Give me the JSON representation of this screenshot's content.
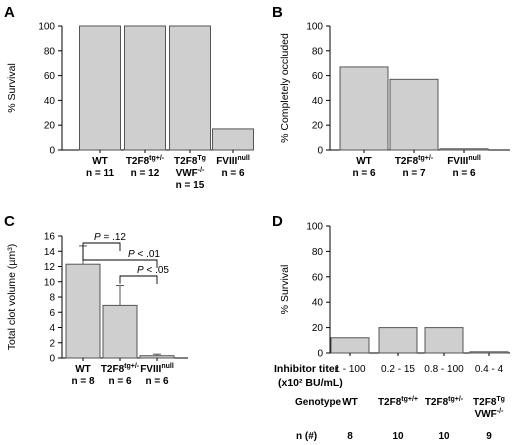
{
  "chart_data": [
    {
      "panel": "A",
      "type": "bar",
      "ylabel": "% Survival",
      "ylim": [
        0,
        100
      ],
      "yticks": [
        "0",
        "20",
        "40",
        "60",
        "80",
        "100"
      ],
      "categories": [
        {
          "lines": [
            [
              "WT",
              ""
            ],
            [
              "n = 11",
              ""
            ]
          ]
        },
        {
          "lines": [
            [
              "T2F8",
              "tg+/-"
            ],
            [
              "n = 12",
              ""
            ]
          ]
        },
        {
          "lines": [
            [
              "T2F8",
              "Tg"
            ],
            [
              "VWF",
              "-/-"
            ],
            [
              "n = 15",
              ""
            ]
          ]
        },
        {
          "lines": [
            [
              "FVIII",
              "null"
            ],
            [
              "n = 6",
              ""
            ]
          ]
        }
      ],
      "values": [
        100,
        100,
        100,
        17
      ],
      "colors": {
        "bar_fill": "#cfcfcf",
        "bar_stroke": "#555555",
        "axis": "#000000"
      }
    },
    {
      "panel": "B",
      "type": "bar",
      "ylabel": "% Completely occluded",
      "ylim": [
        0,
        100
      ],
      "yticks": [
        "0",
        "20",
        "40",
        "60",
        "80",
        "100"
      ],
      "categories": [
        {
          "lines": [
            [
              "WT",
              ""
            ],
            [
              "n = 6",
              ""
            ]
          ]
        },
        {
          "lines": [
            [
              "T2F8",
              "tg+/-"
            ],
            [
              "n = 7",
              ""
            ]
          ]
        },
        {
          "lines": [
            [
              "FVIII",
              "null"
            ],
            [
              "n = 6",
              ""
            ]
          ]
        }
      ],
      "values": [
        67,
        57,
        0
      ],
      "colors": {
        "bar_fill": "#cfcfcf",
        "bar_stroke": "#555555",
        "axis": "#000000"
      }
    },
    {
      "panel": "C",
      "type": "bar",
      "ylabel": "Total clot volume (µm³)",
      "ylim": [
        0,
        16
      ],
      "yticks": [
        "0",
        "2",
        "4",
        "6",
        "8",
        "10",
        "12",
        "14",
        "16"
      ],
      "categories": [
        {
          "lines": [
            [
              "WT",
              ""
            ],
            [
              "n = 8",
              ""
            ]
          ]
        },
        {
          "lines": [
            [
              "T2F8",
              "tg+/-"
            ],
            [
              "n = 6",
              ""
            ]
          ]
        },
        {
          "lines": [
            [
              "FVIII",
              "null"
            ],
            [
              "n = 6",
              ""
            ]
          ]
        }
      ],
      "values": [
        12.3,
        6.9,
        0.3
      ],
      "errors": [
        2.4,
        2.6,
        0.2
      ],
      "comparisons": [
        {
          "from": 0,
          "to": 1,
          "label_italic": "P",
          "label_rest": " = .12"
        },
        {
          "from": 0,
          "to": 2,
          "label_italic": "P",
          "label_rest": " < .01"
        },
        {
          "from": 1,
          "to": 2,
          "label_italic": "P",
          "label_rest": " < .05"
        }
      ],
      "colors": {
        "bar_fill": "#cfcfcf",
        "bar_stroke": "#555555",
        "axis": "#000000"
      }
    },
    {
      "panel": "D",
      "type": "bar",
      "ylabel": "% Survival",
      "ylim": [
        0,
        100
      ],
      "yticks": [
        "0",
        "20",
        "40",
        "60",
        "80",
        "100"
      ],
      "row_labels": {
        "titer_line1": "Inhibitor titer",
        "titer_line2": "(x10² BU/mL)",
        "genotype": "Genotype",
        "n": "n (#)"
      },
      "categories": [
        {
          "titer": "1 - 100",
          "genotype": [
            [
              "WT",
              ""
            ]
          ],
          "n": "8"
        },
        {
          "titer": "0.2 - 15",
          "genotype": [
            [
              "T2F8",
              "tg+/+"
            ]
          ],
          "n": "10"
        },
        {
          "titer": "0.8 - 100",
          "genotype": [
            [
              "T2F8",
              "tg+/-"
            ]
          ],
          "n": "10"
        },
        {
          "titer": "0.4 - 4",
          "genotype": [
            [
              "T2F8",
              "Tg"
            ],
            [
              "VWF",
              "-/-"
            ]
          ],
          "n": "9"
        }
      ],
      "values": [
        12,
        20,
        20,
        0
      ],
      "colors": {
        "bar_fill": "#cfcfcf",
        "bar_stroke": "#555555",
        "axis": "#000000"
      }
    }
  ]
}
